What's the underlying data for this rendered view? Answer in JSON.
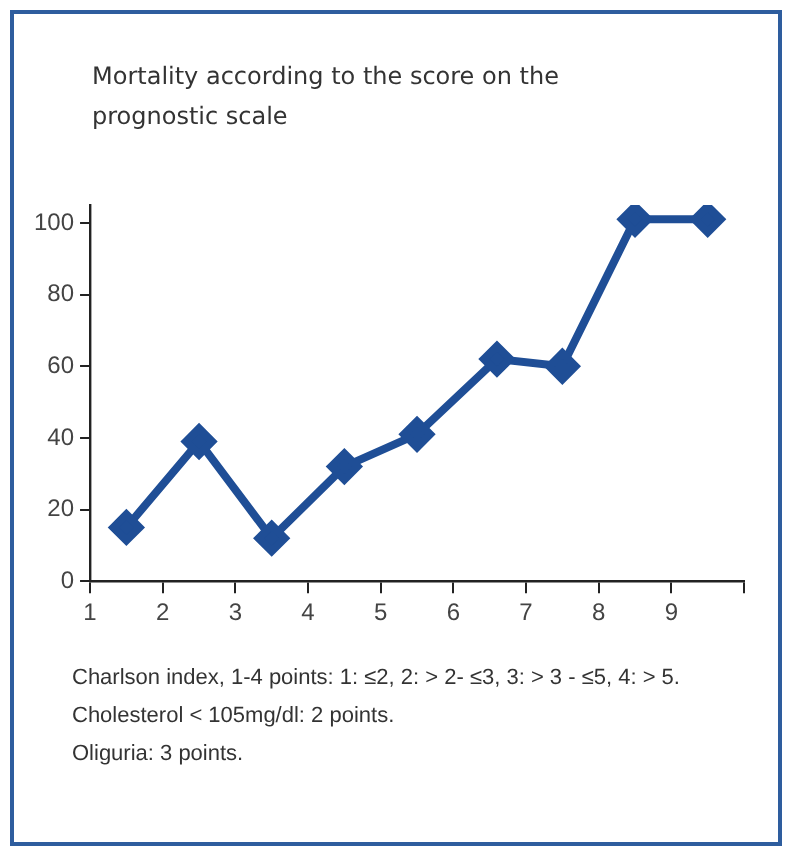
{
  "chart_data": {
    "type": "line",
    "title": "Mortality according to the score on the prognostic scale",
    "x": [
      1.5,
      2.5,
      3.5,
      4.5,
      5.5,
      6.6,
      7.5,
      8.5,
      9.5
    ],
    "series": [
      {
        "color": "#1f4e96",
        "values": [
          15,
          39,
          12,
          32,
          41,
          62,
          60,
          101,
          101
        ]
      }
    ],
    "xlim": [
      1,
      10
    ],
    "xticks": [
      1,
      2,
      3,
      4,
      5,
      6,
      7,
      8,
      9,
      {
        "value": 10,
        "label": null
      }
    ],
    "ylim": [
      0,
      105
    ],
    "yticks": [
      0,
      20,
      40,
      60,
      80,
      100
    ],
    "grid": false,
    "legend": false,
    "marker": "diamond",
    "line_style": "solid",
    "annotations": [
      "Charlson index, 1-4 points: 1: ≤2, 2: > 2- ≤3, 3: > 3 - ≤5, 4: > 5.",
      "Cholesterol < 105mg/dl: 2 points.",
      "Oliguria: 3 points."
    ]
  }
}
